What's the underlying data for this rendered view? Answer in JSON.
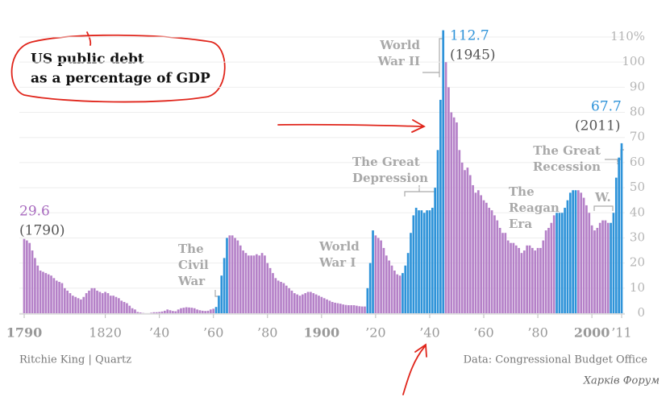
{
  "chart_data": {
    "type": "bar",
    "title_lines": [
      "US public debt",
      "as a percentage of GDP"
    ],
    "x": [
      1790,
      1791,
      1792,
      1793,
      1794,
      1795,
      1796,
      1797,
      1798,
      1799,
      1800,
      1801,
      1802,
      1803,
      1804,
      1805,
      1806,
      1807,
      1808,
      1809,
      1810,
      1811,
      1812,
      1813,
      1814,
      1815,
      1816,
      1817,
      1818,
      1819,
      1820,
      1821,
      1822,
      1823,
      1824,
      1825,
      1826,
      1827,
      1828,
      1829,
      1830,
      1831,
      1832,
      1833,
      1834,
      1835,
      1836,
      1837,
      1838,
      1839,
      1840,
      1841,
      1842,
      1843,
      1844,
      1845,
      1846,
      1847,
      1848,
      1849,
      1850,
      1851,
      1852,
      1853,
      1854,
      1855,
      1856,
      1857,
      1858,
      1859,
      1860,
      1861,
      1862,
      1863,
      1864,
      1865,
      1866,
      1867,
      1868,
      1869,
      1870,
      1871,
      1872,
      1873,
      1874,
      1875,
      1876,
      1877,
      1878,
      1879,
      1880,
      1881,
      1882,
      1883,
      1884,
      1885,
      1886,
      1887,
      1888,
      1889,
      1890,
      1891,
      1892,
      1893,
      1894,
      1895,
      1896,
      1897,
      1898,
      1899,
      1900,
      1901,
      1902,
      1903,
      1904,
      1905,
      1906,
      1907,
      1908,
      1909,
      1910,
      1911,
      1912,
      1913,
      1914,
      1915,
      1916,
      1917,
      1918,
      1919,
      1920,
      1921,
      1922,
      1923,
      1924,
      1925,
      1926,
      1927,
      1928,
      1929,
      1930,
      1931,
      1932,
      1933,
      1934,
      1935,
      1936,
      1937,
      1938,
      1939,
      1940,
      1941,
      1942,
      1943,
      1944,
      1945,
      1946,
      1947,
      1948,
      1949,
      1950,
      1951,
      1952,
      1953,
      1954,
      1955,
      1956,
      1957,
      1958,
      1959,
      1960,
      1961,
      1962,
      1963,
      1964,
      1965,
      1966,
      1967,
      1968,
      1969,
      1970,
      1971,
      1972,
      1973,
      1974,
      1975,
      1976,
      1977,
      1978,
      1979,
      1980,
      1981,
      1982,
      1983,
      1984,
      1985,
      1986,
      1987,
      1988,
      1989,
      1990,
      1991,
      1992,
      1993,
      1994,
      1995,
      1996,
      1997,
      1998,
      1999,
      2000,
      2001,
      2002,
      2003,
      2004,
      2005,
      2006,
      2007,
      2008,
      2009,
      2010,
      2011
    ],
    "values": [
      29.6,
      29,
      28,
      25,
      22,
      19,
      17,
      16.5,
      16,
      15.5,
      15,
      14,
      13,
      12.5,
      12,
      10,
      9,
      8,
      7,
      6.5,
      6,
      5.5,
      6.5,
      8,
      9,
      10,
      10,
      9,
      8.5,
      8,
      8.5,
      8,
      7,
      7,
      6.5,
      6,
      5,
      4.5,
      4,
      3,
      2,
      1.5,
      0.5,
      0.3,
      0.1,
      0,
      0,
      0.2,
      0.4,
      0.4,
      0.5,
      0.7,
      1,
      1.5,
      1.2,
      0.9,
      0.8,
      1.5,
      2,
      2.2,
      2.4,
      2.3,
      2.2,
      2,
      1.5,
      1.2,
      1,
      0.9,
      1,
      1.5,
      1.8,
      2.5,
      7,
      15,
      22,
      30,
      31,
      31,
      30,
      29,
      27,
      25,
      24,
      23,
      23,
      23,
      23.5,
      23,
      24,
      23,
      20,
      18,
      16,
      14,
      13,
      12.5,
      12,
      11,
      10,
      9,
      8,
      7.5,
      7,
      7.5,
      8,
      8.5,
      8.5,
      8,
      7.5,
      7,
      6.5,
      6,
      5.5,
      5,
      4.5,
      4.2,
      4,
      3.8,
      3.5,
      3.3,
      3.2,
      3.2,
      3.2,
      3,
      2.8,
      2.7,
      2.7,
      10,
      20,
      33,
      31,
      30,
      29,
      26,
      23,
      21,
      19,
      17,
      15.5,
      15,
      16,
      19,
      24,
      32,
      39,
      42,
      41,
      41,
      40,
      41,
      41,
      42,
      50,
      65,
      85,
      112.7,
      100,
      90,
      80,
      78,
      76,
      65,
      60,
      57,
      58,
      55,
      51,
      48,
      49,
      47,
      45,
      44,
      42,
      41,
      39,
      37,
      34,
      32,
      32,
      29,
      28,
      28,
      27,
      26,
      24,
      25,
      27,
      27,
      26,
      25,
      26,
      26,
      29,
      33,
      34,
      36,
      39,
      40,
      40,
      40,
      42,
      45,
      48,
      49,
      49,
      49,
      48,
      46,
      43,
      40,
      35,
      33,
      34,
      36,
      37,
      37,
      36,
      36,
      40,
      54,
      62,
      67.7
    ],
    "colors": [
      "#b581c8",
      "#b581c8",
      "#b581c8",
      "#b581c8",
      "#b581c8",
      "#b581c8",
      "#b581c8",
      "#b581c8",
      "#b581c8",
      "#b581c8",
      "#b581c8",
      "#b581c8",
      "#b581c8",
      "#b581c8",
      "#b581c8",
      "#b581c8",
      "#b581c8",
      "#b581c8",
      "#b581c8",
      "#b581c8",
      "#b581c8",
      "#b581c8",
      "#b581c8",
      "#b581c8",
      "#b581c8",
      "#b581c8",
      "#b581c8",
      "#b581c8",
      "#b581c8",
      "#b581c8",
      "#b581c8",
      "#b581c8",
      "#b581c8",
      "#b581c8",
      "#b581c8",
      "#b581c8",
      "#b581c8",
      "#b581c8",
      "#b581c8",
      "#b581c8",
      "#b581c8",
      "#b581c8",
      "#b581c8",
      "#b581c8",
      "#b581c8",
      "#b581c8",
      "#b581c8",
      "#b581c8",
      "#b581c8",
      "#b581c8",
      "#b581c8",
      "#b581c8",
      "#b581c8",
      "#b581c8",
      "#b581c8",
      "#b581c8",
      "#b581c8",
      "#b581c8",
      "#b581c8",
      "#b581c8",
      "#b581c8",
      "#b581c8",
      "#b581c8",
      "#b581c8",
      "#b581c8",
      "#b581c8",
      "#b581c8",
      "#b581c8",
      "#b581c8",
      "#b581c8",
      "#b581c8",
      "#2e93d9",
      "#2e93d9",
      "#2e93d9",
      "#2e93d9",
      "#2e93d9",
      "#b581c8",
      "#b581c8",
      "#b581c8",
      "#b581c8",
      "#b581c8",
      "#b581c8",
      "#b581c8",
      "#b581c8",
      "#b581c8",
      "#b581c8",
      "#b581c8",
      "#b581c8",
      "#b581c8",
      "#b581c8",
      "#b581c8",
      "#b581c8",
      "#b581c8",
      "#b581c8",
      "#b581c8",
      "#b581c8",
      "#b581c8",
      "#b581c8",
      "#b581c8",
      "#b581c8",
      "#b581c8",
      "#b581c8",
      "#b581c8",
      "#b581c8",
      "#b581c8",
      "#b581c8",
      "#b581c8",
      "#b581c8",
      "#b581c8",
      "#b581c8",
      "#b581c8",
      "#b581c8",
      "#b581c8",
      "#b581c8",
      "#b581c8",
      "#b581c8",
      "#b581c8",
      "#b581c8",
      "#b581c8",
      "#b581c8",
      "#b581c8",
      "#b581c8",
      "#b581c8",
      "#b581c8",
      "#b581c8",
      "#b581c8",
      "#b581c8",
      "#2e93d9",
      "#2e93d9",
      "#2e93d9",
      "#b581c8",
      "#b581c8",
      "#b581c8",
      "#b581c8",
      "#b581c8",
      "#b581c8",
      "#b581c8",
      "#b581c8",
      "#b581c8",
      "#b581c8",
      "#2e93d9",
      "#2e93d9",
      "#2e93d9",
      "#2e93d9",
      "#2e93d9",
      "#2e93d9",
      "#2e93d9",
      "#2e93d9",
      "#2e93d9",
      "#2e93d9",
      "#2e93d9",
      "#2e93d9",
      "#2e93d9",
      "#2e93d9",
      "#2e93d9",
      "#2e93d9",
      "#b581c8",
      "#b581c8",
      "#b581c8",
      "#b581c8",
      "#b581c8",
      "#b581c8",
      "#b581c8",
      "#b581c8",
      "#b581c8",
      "#b581c8",
      "#b581c8",
      "#b581c8",
      "#b581c8",
      "#b581c8",
      "#b581c8",
      "#b581c8",
      "#b581c8",
      "#b581c8",
      "#b581c8",
      "#b581c8",
      "#b581c8",
      "#b581c8",
      "#b581c8",
      "#b581c8",
      "#b581c8",
      "#b581c8",
      "#b581c8",
      "#b581c8",
      "#b581c8",
      "#b581c8",
      "#b581c8",
      "#b581c8",
      "#b581c8",
      "#b581c8",
      "#b581c8",
      "#b581c8",
      "#b581c8",
      "#b581c8",
      "#b581c8",
      "#b581c8",
      "#b581c8",
      "#2e93d9",
      "#2e93d9",
      "#2e93d9",
      "#2e93d9",
      "#2e93d9",
      "#2e93d9",
      "#2e93d9",
      "#2e93d9",
      "#b581c8",
      "#b581c8",
      "#b581c8",
      "#b581c8",
      "#b581c8",
      "#b581c8",
      "#b581c8",
      "#b581c8",
      "#b581c8",
      "#b581c8",
      "#b581c8",
      "#b581c8",
      "#2e93d9",
      "#2e93d9",
      "#2e93d9",
      "#2e93d9",
      "#2e93d9",
      "#2e93d9",
      "#2e93d9",
      "#b581c8",
      "#2e93d9",
      "#2e93d9",
      "#2e93d9"
    ],
    "xlim": [
      1790,
      2011
    ],
    "xticks": [
      1790,
      1820,
      {
        "value": 1840,
        "label": "’40"
      },
      {
        "value": 1860,
        "label": "’60"
      },
      {
        "value": 1880,
        "label": "’80"
      },
      1900,
      {
        "value": 1920,
        "label": "’20"
      },
      {
        "value": 1940,
        "label": "’40"
      },
      {
        "value": 1960,
        "label": "’60"
      },
      {
        "value": 1980,
        "label": "’80"
      },
      2000,
      {
        "value": 2011,
        "label": "’11"
      }
    ],
    "ylim": [
      0,
      110
    ],
    "yticks": [
      0,
      10,
      20,
      30,
      40,
      50,
      60,
      70,
      80,
      90,
      100,
      {
        "value": 110,
        "label": "110%"
      }
    ],
    "grid": true,
    "annotations": [
      "(1790)",
      "(1945)",
      "(2011)"
    ],
    "eras": [
      {
        "lines": [
          "The",
          "Civil",
          "War"
        ]
      },
      {
        "lines": [
          "World",
          "War I"
        ]
      },
      {
        "lines": [
          "The Great",
          "Depression"
        ]
      },
      {
        "lines": [
          "World",
          "War II"
        ]
      },
      {
        "lines": [
          "The",
          "Reagan",
          "Era"
        ]
      },
      {
        "lines": [
          "The Great",
          "Recession"
        ]
      },
      {
        "lines": [
          "W."
        ]
      }
    ],
    "source_left": "Ritchie King | Quartz",
    "source_right": "Data: Congressional Budget Office",
    "watermark": "Харків Форум"
  }
}
